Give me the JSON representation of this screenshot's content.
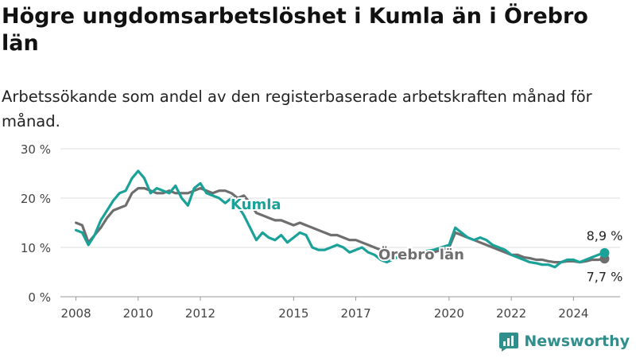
{
  "title": "Högre ungdomsarbetslöshet i Kumla än i Örebro län",
  "subtitle": "Arbetssökande som andel av den registerbaserade arbetskraften månad för månad.",
  "brand": "Newsworthy",
  "colors": {
    "kumla": "#1aa198",
    "orebro": "#6e6e6e",
    "grid": "#dddddd",
    "brand": "#2f8f8c"
  },
  "chart_data": {
    "type": "line",
    "ylim": [
      0,
      30
    ],
    "yticks": [
      0,
      10,
      20,
      30
    ],
    "ytick_labels": [
      "0 %",
      "10 %",
      "20 %",
      "30 %"
    ],
    "xlim": [
      2007.5,
      2025.5
    ],
    "xticks": [
      2008,
      2010,
      2012,
      2015,
      2017,
      2020,
      2022,
      2024
    ],
    "xtick_labels": [
      "2008",
      "2010",
      "2012",
      "2015",
      "2017",
      "2020",
      "2022",
      "2024"
    ],
    "grid": true,
    "series": [
      {
        "name": "Kumla",
        "color": "#1aa198",
        "last_label": "8,9 %",
        "x": [
          2008.0,
          2008.2,
          2008.4,
          2008.6,
          2008.8,
          2009.0,
          2009.2,
          2009.4,
          2009.6,
          2009.8,
          2010.0,
          2010.2,
          2010.4,
          2010.6,
          2010.8,
          2011.0,
          2011.2,
          2011.4,
          2011.6,
          2011.8,
          2012.0,
          2012.2,
          2012.4,
          2012.6,
          2012.8,
          2013.0,
          2013.2,
          2013.4,
          2013.6,
          2013.8,
          2014.0,
          2014.2,
          2014.4,
          2014.6,
          2014.8,
          2015.0,
          2015.2,
          2015.4,
          2015.6,
          2015.8,
          2016.0,
          2016.2,
          2016.4,
          2016.6,
          2016.8,
          2017.0,
          2017.2,
          2017.4,
          2017.6,
          2017.8,
          2018.0,
          2018.5,
          2019.0,
          2019.5,
          2020.0,
          2020.2,
          2020.4,
          2020.6,
          2020.8,
          2021.0,
          2021.2,
          2021.4,
          2021.6,
          2021.8,
          2022.0,
          2022.2,
          2022.4,
          2022.6,
          2022.8,
          2023.0,
          2023.2,
          2023.4,
          2023.6,
          2023.8,
          2024.0,
          2024.2,
          2024.4,
          2024.6,
          2024.8,
          2025.0
        ],
        "y": [
          13.5,
          13.0,
          10.5,
          12.5,
          15.5,
          17.5,
          19.5,
          21.0,
          21.5,
          24.0,
          25.5,
          24.0,
          21.0,
          22.0,
          21.5,
          21.0,
          22.5,
          20.0,
          18.5,
          22.0,
          23.0,
          21.0,
          20.5,
          20.0,
          19.0,
          20.0,
          18.5,
          16.5,
          14.0,
          11.5,
          13.0,
          12.0,
          11.5,
          12.5,
          11.0,
          12.0,
          13.0,
          12.5,
          10.0,
          9.5,
          9.5,
          10.0,
          10.5,
          10.0,
          9.0,
          9.5,
          10.0,
          9.0,
          8.5,
          7.5,
          7.0,
          8.5,
          9.0,
          9.5,
          10.5,
          14.0,
          13.0,
          12.0,
          11.5,
          12.0,
          11.5,
          10.5,
          10.0,
          9.5,
          8.5,
          8.0,
          7.5,
          7.0,
          6.8,
          6.5,
          6.5,
          6.0,
          7.0,
          7.5,
          7.5,
          7.0,
          7.5,
          8.0,
          8.5,
          8.9
        ]
      },
      {
        "name": "Örebro län",
        "color": "#6e6e6e",
        "last_label": "7,7 %",
        "x": [
          2008.0,
          2008.2,
          2008.4,
          2008.6,
          2008.8,
          2009.0,
          2009.2,
          2009.4,
          2009.6,
          2009.8,
          2010.0,
          2010.2,
          2010.4,
          2010.6,
          2010.8,
          2011.0,
          2011.2,
          2011.4,
          2011.6,
          2011.8,
          2012.0,
          2012.2,
          2012.4,
          2012.6,
          2012.8,
          2013.0,
          2013.2,
          2013.4,
          2013.6,
          2013.8,
          2014.0,
          2014.2,
          2014.4,
          2014.6,
          2014.8,
          2015.0,
          2015.2,
          2015.4,
          2015.6,
          2015.8,
          2016.0,
          2016.2,
          2016.4,
          2016.6,
          2016.8,
          2017.0,
          2017.2,
          2017.4,
          2017.6,
          2017.8,
          2018.0,
          2018.5,
          2019.0,
          2019.5,
          2020.0,
          2020.2,
          2020.4,
          2020.6,
          2020.8,
          2021.0,
          2021.2,
          2021.4,
          2021.6,
          2021.8,
          2022.0,
          2022.2,
          2022.4,
          2022.6,
          2022.8,
          2023.0,
          2023.2,
          2023.4,
          2023.6,
          2023.8,
          2024.0,
          2024.2,
          2024.4,
          2024.6,
          2024.8,
          2025.0
        ],
        "y": [
          15.0,
          14.5,
          11.0,
          12.5,
          14.0,
          16.0,
          17.5,
          18.0,
          18.5,
          21.0,
          22.0,
          22.0,
          21.5,
          21.0,
          21.0,
          21.5,
          21.0,
          21.0,
          21.0,
          21.5,
          22.0,
          21.5,
          21.0,
          21.5,
          21.5,
          21.0,
          20.0,
          20.5,
          19.0,
          17.0,
          16.5,
          16.0,
          15.5,
          15.5,
          15.0,
          14.5,
          15.0,
          14.5,
          14.0,
          13.5,
          13.0,
          12.5,
          12.5,
          12.0,
          11.5,
          11.5,
          11.0,
          10.5,
          10.0,
          9.5,
          9.0,
          8.5,
          8.5,
          9.0,
          10.0,
          13.0,
          12.5,
          12.0,
          11.5,
          11.0,
          10.5,
          10.0,
          9.5,
          9.0,
          8.5,
          8.5,
          8.0,
          7.8,
          7.5,
          7.5,
          7.2,
          7.0,
          7.0,
          7.2,
          7.2,
          7.0,
          7.2,
          7.5,
          7.5,
          7.7
        ]
      }
    ]
  }
}
